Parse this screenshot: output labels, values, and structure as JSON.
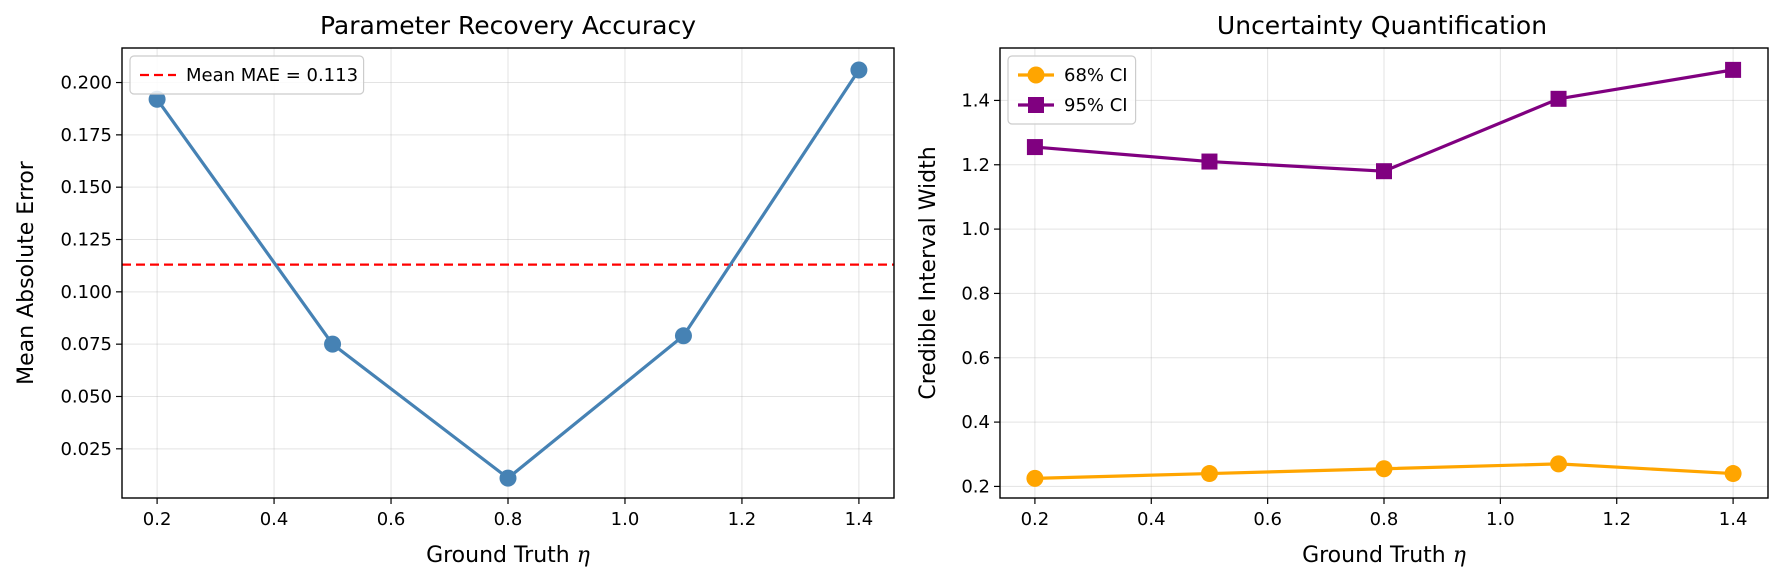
{
  "chart_data": [
    {
      "type": "line",
      "title": "Parameter Recovery Accuracy",
      "xlabel": "Ground Truth",
      "xlabel_symbol": "η",
      "ylabel": "Mean Absolute Error",
      "xlim": [
        0.14,
        1.46
      ],
      "ylim": [
        0.0015,
        0.2165
      ],
      "xticks": [
        0.2,
        0.4,
        0.6,
        0.8,
        1.0,
        1.2,
        1.4
      ],
      "xtick_labels": [
        "0.2",
        "0.4",
        "0.6",
        "0.8",
        "1.0",
        "1.2",
        "1.4"
      ],
      "yticks": [
        0.025,
        0.05,
        0.075,
        0.1,
        0.125,
        0.15,
        0.175,
        0.2
      ],
      "ytick_labels": [
        "0.025",
        "0.050",
        "0.075",
        "0.100",
        "0.125",
        "0.150",
        "0.175",
        "0.200"
      ],
      "grid": true,
      "legend_position": "top-left",
      "series": [
        {
          "name": "MAE",
          "color": "#4682b4",
          "marker": "circle",
          "x": [
            0.2,
            0.5,
            0.8,
            1.1,
            1.4
          ],
          "values": [
            0.192,
            0.075,
            0.011,
            0.079,
            0.206
          ]
        }
      ],
      "hlines": [
        {
          "y": 0.113,
          "label": "Mean MAE = 0.113",
          "color": "#ff0000",
          "style": "dashed"
        }
      ]
    },
    {
      "type": "line",
      "title": "Uncertainty Quantification",
      "xlabel": "Ground Truth",
      "xlabel_symbol": "η",
      "ylabel": "Credible Interval Width",
      "xlim": [
        0.14,
        1.46
      ],
      "ylim": [
        0.164,
        1.563
      ],
      "xticks": [
        0.2,
        0.4,
        0.6,
        0.8,
        1.0,
        1.2,
        1.4
      ],
      "xtick_labels": [
        "0.2",
        "0.4",
        "0.6",
        "0.8",
        "1.0",
        "1.2",
        "1.4"
      ],
      "yticks": [
        0.2,
        0.4,
        0.6,
        0.8,
        1.0,
        1.2,
        1.4
      ],
      "ytick_labels": [
        "0.2",
        "0.4",
        "0.6",
        "0.8",
        "1.0",
        "1.2",
        "1.4"
      ],
      "grid": true,
      "legend_position": "top-left",
      "series": [
        {
          "name": "68% CI",
          "color": "#ffa500",
          "marker": "circle",
          "x": [
            0.2,
            0.5,
            0.8,
            1.1,
            1.4
          ],
          "values": [
            0.225,
            0.24,
            0.255,
            0.27,
            0.24
          ]
        },
        {
          "name": "95% CI",
          "color": "#800080",
          "marker": "square",
          "x": [
            0.2,
            0.5,
            0.8,
            1.1,
            1.4
          ],
          "values": [
            1.255,
            1.21,
            1.18,
            1.405,
            1.495
          ]
        }
      ],
      "hlines": []
    }
  ]
}
